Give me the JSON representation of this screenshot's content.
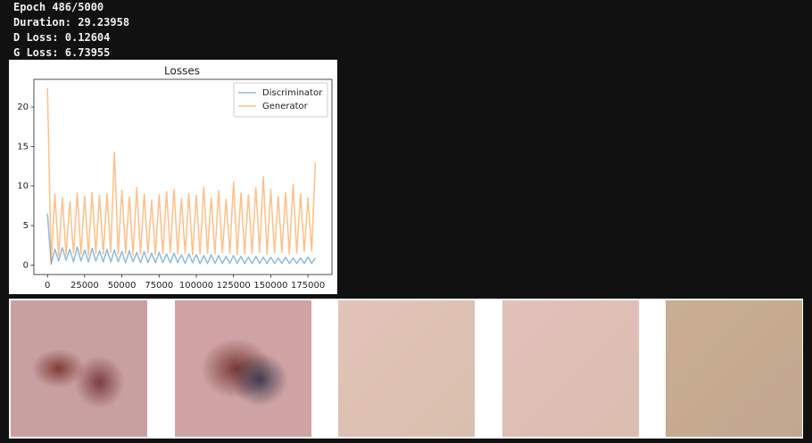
{
  "output_lines": [
    "Epoch 486/5000",
    "Duration: 29.23958",
    "D Loss: 0.12604",
    "G Loss: 6.73955"
  ],
  "chart_data": {
    "type": "line",
    "title": "Losses",
    "x": [
      0,
      2500,
      5000,
      7500,
      10000,
      12500,
      15000,
      17500,
      20000,
      22500,
      25000,
      27500,
      30000,
      32500,
      35000,
      37500,
      40000,
      42500,
      45000,
      47500,
      50000,
      52500,
      55000,
      57500,
      60000,
      62500,
      65000,
      67500,
      70000,
      72500,
      75000,
      77500,
      80000,
      82500,
      85000,
      87500,
      90000,
      92500,
      95000,
      97500,
      100000,
      102500,
      105000,
      107500,
      110000,
      112500,
      115000,
      117500,
      120000,
      122500,
      125000,
      127500,
      130000,
      132500,
      135000,
      137500,
      140000,
      142500,
      145000,
      147500,
      150000,
      152500,
      155000,
      157500,
      160000,
      162500,
      165000,
      167500,
      170000,
      172500,
      175000,
      177500,
      180000
    ],
    "series": [
      {
        "name": "Discriminator",
        "color": "#1f77b4",
        "values": [
          6.5,
          0.1,
          2.0,
          0.5,
          2.2,
          0.6,
          2.0,
          0.4,
          2.3,
          0.5,
          1.9,
          0.4,
          2.1,
          0.5,
          1.8,
          0.4,
          2.0,
          0.4,
          1.9,
          0.4,
          1.7,
          0.3,
          1.8,
          0.4,
          1.6,
          0.3,
          1.7,
          0.3,
          1.5,
          0.3,
          1.6,
          0.3,
          1.4,
          0.3,
          1.5,
          0.3,
          1.3,
          0.2,
          1.4,
          0.3,
          1.3,
          0.2,
          1.2,
          0.2,
          1.3,
          0.2,
          1.2,
          0.2,
          1.1,
          0.2,
          1.2,
          0.2,
          1.1,
          0.2,
          1.0,
          0.2,
          1.1,
          0.2,
          1.0,
          0.2,
          1.0,
          0.2,
          0.9,
          0.2,
          1.0,
          0.2,
          0.9,
          0.2,
          0.9,
          0.2,
          1.0,
          0.2,
          0.9
        ]
      },
      {
        "name": "Generator",
        "color": "#ff7f0e",
        "values": [
          22.4,
          0.3,
          9.0,
          1.2,
          8.5,
          1.3,
          8.0,
          1.5,
          9.1,
          1.4,
          8.7,
          1.3,
          9.2,
          1.5,
          8.8,
          1.4,
          9.0,
          1.6,
          14.3,
          1.4,
          9.5,
          1.5,
          8.6,
          1.3,
          9.8,
          1.4,
          9.0,
          1.5,
          8.2,
          1.3,
          8.9,
          1.4,
          9.3,
          1.6,
          9.6,
          1.4,
          8.4,
          1.5,
          9.0,
          1.3,
          8.8,
          1.4,
          9.9,
          1.5,
          8.5,
          1.4,
          9.4,
          1.6,
          8.3,
          1.5,
          10.5,
          1.3,
          9.1,
          1.4,
          8.9,
          1.5,
          9.8,
          1.6,
          11.2,
          1.4,
          9.6,
          1.5,
          8.7,
          1.6,
          9.2,
          1.4,
          10.2,
          1.5,
          9.0,
          1.7,
          8.5,
          1.8,
          13.0
        ]
      }
    ],
    "alpha": 0.5,
    "xlim": [
      -9100,
      191100
    ],
    "ylim": [
      -1.2,
      23.5
    ],
    "xticks": [
      0,
      25000,
      50000,
      75000,
      100000,
      125000,
      150000,
      175000
    ],
    "yticks": [
      0,
      5,
      10,
      15,
      20
    ],
    "legend": "upper right",
    "grid": false
  }
}
